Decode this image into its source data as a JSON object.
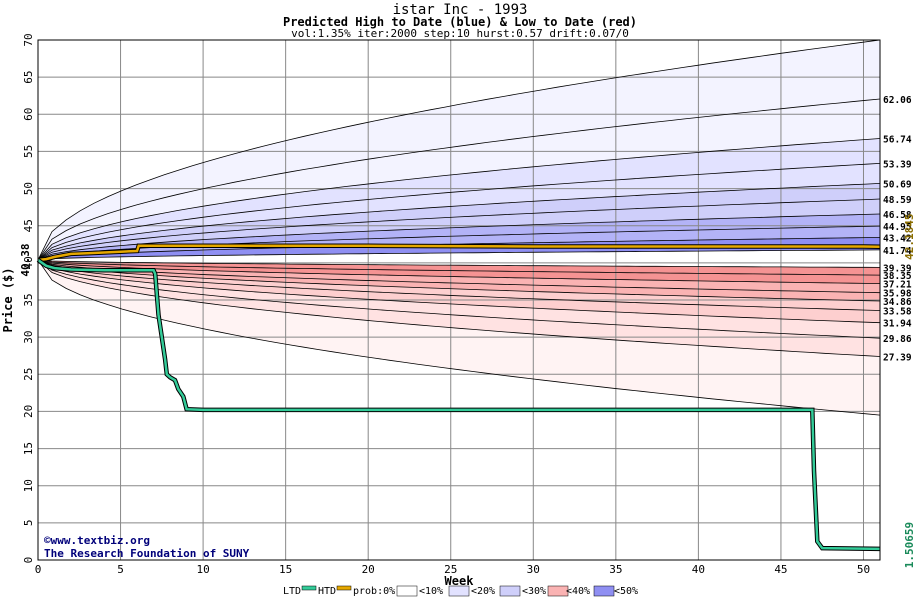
{
  "header": {
    "title": "istar Inc - 1993",
    "subtitle": "Predicted High to Date (blue) &  Low to Date (red)",
    "params": "vol:1.35% iter:2000 step:10 hurst:0.57 drift:0.07/0"
  },
  "credits": {
    "line1": "©www.textbiz.org",
    "line2": "The Research Foundation of SUNY"
  },
  "colors": {
    "htd": "#33cc99",
    "ltd": "#e6a800",
    "blue_bands": [
      "#f3f3ff",
      "#e2e2ff",
      "#cfcffa",
      "#b3b3f7",
      "#8f8ff2"
    ],
    "red_bands": [
      "#fff3f3",
      "#ffe2e2",
      "#fdcfcf",
      "#fab3b3",
      "#f59393"
    ],
    "start_label": "#000000",
    "last_price": "#8a6d00",
    "last_low": "#1a8a5a"
  },
  "chart_data": {
    "type": "line",
    "xlabel": "Week",
    "ylabel": "Price ($)",
    "xlim": [
      0,
      51
    ],
    "ylim": [
      0,
      70
    ],
    "xticks": [
      0,
      5,
      10,
      15,
      20,
      25,
      30,
      35,
      40,
      45,
      50
    ],
    "yticks": [
      0,
      5,
      10,
      15,
      20,
      25,
      30,
      35,
      40,
      45,
      50,
      55,
      60,
      65,
      70
    ],
    "start_price": "40.38",
    "last_price_label": "42.1845",
    "last_low_label": "1.50659",
    "right_labels_high": [
      "62.06",
      "56.74",
      "53.39",
      "50.69",
      "48.59",
      "46.58",
      "44.95",
      "43.42",
      "41.74"
    ],
    "right_labels_low": [
      "39.39",
      "38.35",
      "37.21",
      "35.98",
      "34.86",
      "33.58",
      "31.94",
      "29.86",
      "27.39"
    ],
    "high_quantiles": [
      {
        "label": "max",
        "end": 70
      },
      {
        "label": "62.06",
        "end": 62.06
      },
      {
        "label": "56.74",
        "end": 56.74
      },
      {
        "label": "53.39",
        "end": 53.39
      },
      {
        "label": "50.69",
        "end": 50.69
      },
      {
        "label": "48.59",
        "end": 48.59
      },
      {
        "label": "46.58",
        "end": 46.58
      },
      {
        "label": "44.95",
        "end": 44.95
      },
      {
        "label": "43.42",
        "end": 43.42
      },
      {
        "label": "41.74",
        "end": 41.74
      }
    ],
    "low_quantiles": [
      {
        "label": "39.39",
        "end": 39.39
      },
      {
        "label": "38.35",
        "end": 38.35
      },
      {
        "label": "37.21",
        "end": 37.21
      },
      {
        "label": "35.98",
        "end": 35.98
      },
      {
        "label": "34.86",
        "end": 34.86
      },
      {
        "label": "33.58",
        "end": 33.58
      },
      {
        "label": "31.94",
        "end": 31.94
      },
      {
        "label": "29.86",
        "end": 29.86
      },
      {
        "label": "27.39",
        "end": 27.39
      },
      {
        "label": "min",
        "end": 19.5
      }
    ],
    "series": [
      {
        "name": "HTD",
        "points": [
          [
            0,
            40.38
          ],
          [
            0.5,
            40.5
          ],
          [
            1,
            40.8
          ],
          [
            1.5,
            41.0
          ],
          [
            2,
            41.2
          ],
          [
            3,
            41.3
          ],
          [
            4,
            41.4
          ],
          [
            5,
            41.5
          ],
          [
            6,
            41.6
          ],
          [
            6.1,
            42.3
          ],
          [
            10,
            42.3
          ],
          [
            20,
            42.3
          ],
          [
            30,
            42.2
          ],
          [
            40,
            42.2
          ],
          [
            50,
            42.2
          ],
          [
            51,
            42.18
          ]
        ]
      },
      {
        "name": "LTD",
        "points": [
          [
            0,
            40.38
          ],
          [
            0.5,
            39.6
          ],
          [
            1,
            39.3
          ],
          [
            2,
            39.1
          ],
          [
            4,
            39.0
          ],
          [
            7,
            39.0
          ],
          [
            7.1,
            38.5
          ],
          [
            7.3,
            33
          ],
          [
            7.5,
            30
          ],
          [
            7.7,
            27
          ],
          [
            7.8,
            25
          ],
          [
            8,
            24.6
          ],
          [
            8.3,
            24.2
          ],
          [
            8.5,
            23
          ],
          [
            8.8,
            22
          ],
          [
            9,
            20.3
          ],
          [
            10,
            20.2
          ],
          [
            20,
            20.2
          ],
          [
            30,
            20.2
          ],
          [
            40,
            20.2
          ],
          [
            46.9,
            20.2
          ],
          [
            47.0,
            12
          ],
          [
            47.2,
            2.5
          ],
          [
            47.5,
            1.6
          ],
          [
            51,
            1.5
          ]
        ]
      }
    ]
  },
  "legend": {
    "ltd": "LTD",
    "htd": "HTD",
    "prob": "prob:0%",
    "p10": "<10%",
    "p20": "<20%",
    "p30": "<30%",
    "p40": "<40%",
    "p50": "<50%"
  }
}
